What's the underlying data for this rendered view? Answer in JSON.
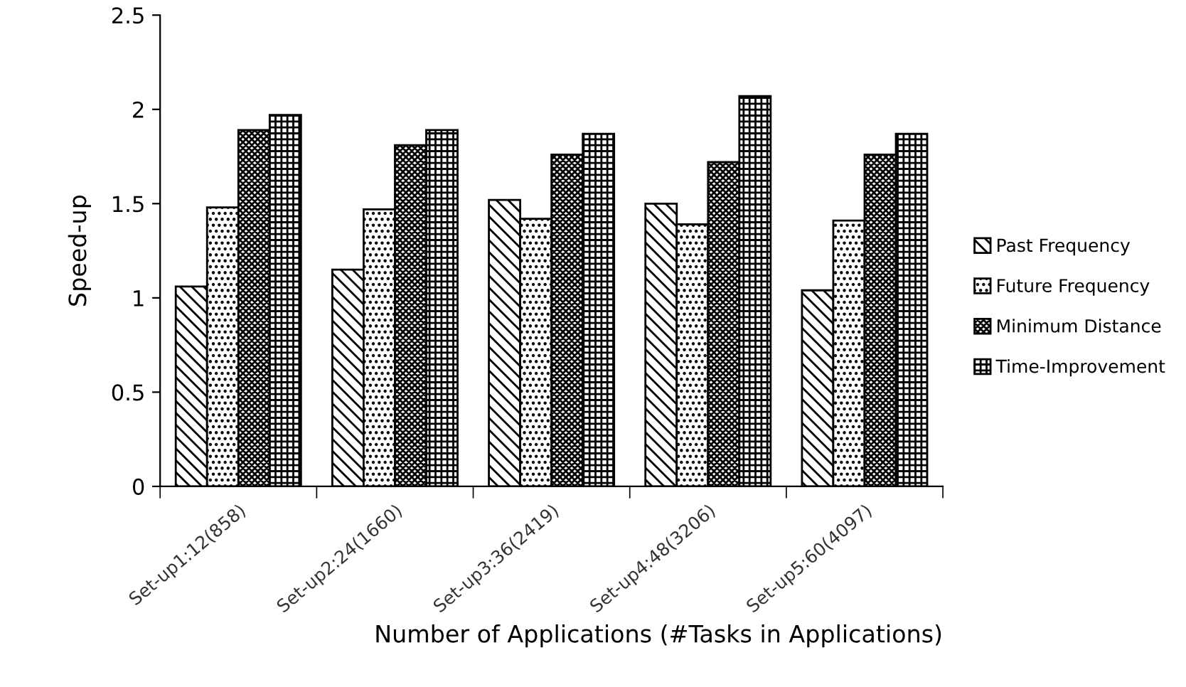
{
  "chart_data": {
    "type": "bar",
    "xlabel": "Number of Applications (#Tasks in Applications)",
    "ylabel": "Speed-up",
    "categories": [
      "Set-up1:12(858)",
      "Set-up2:24(1660)",
      "Set-up3:36(2419)",
      "Set-up4:48(3206)",
      "Set-up5:60(4097)"
    ],
    "series": [
      {
        "name": "Past Frequency",
        "color": "#000000",
        "values": [
          1.06,
          1.15,
          1.52,
          1.5,
          1.04
        ]
      },
      {
        "name": "Future Frequency",
        "color": "#000000",
        "values": [
          1.48,
          1.47,
          1.42,
          1.39,
          1.41
        ]
      },
      {
        "name": "Minimum Distance",
        "color": "#000000",
        "values": [
          1.89,
          1.81,
          1.76,
          1.72,
          1.76
        ]
      },
      {
        "name": "Time-Improvement",
        "color": "#000000",
        "values": [
          1.97,
          1.89,
          1.87,
          2.07,
          1.87
        ]
      }
    ],
    "ylim": [
      0,
      2.5
    ],
    "yticks": [
      0,
      0.5,
      1,
      1.5,
      2,
      2.5
    ],
    "grid": false,
    "legend": "right"
  }
}
